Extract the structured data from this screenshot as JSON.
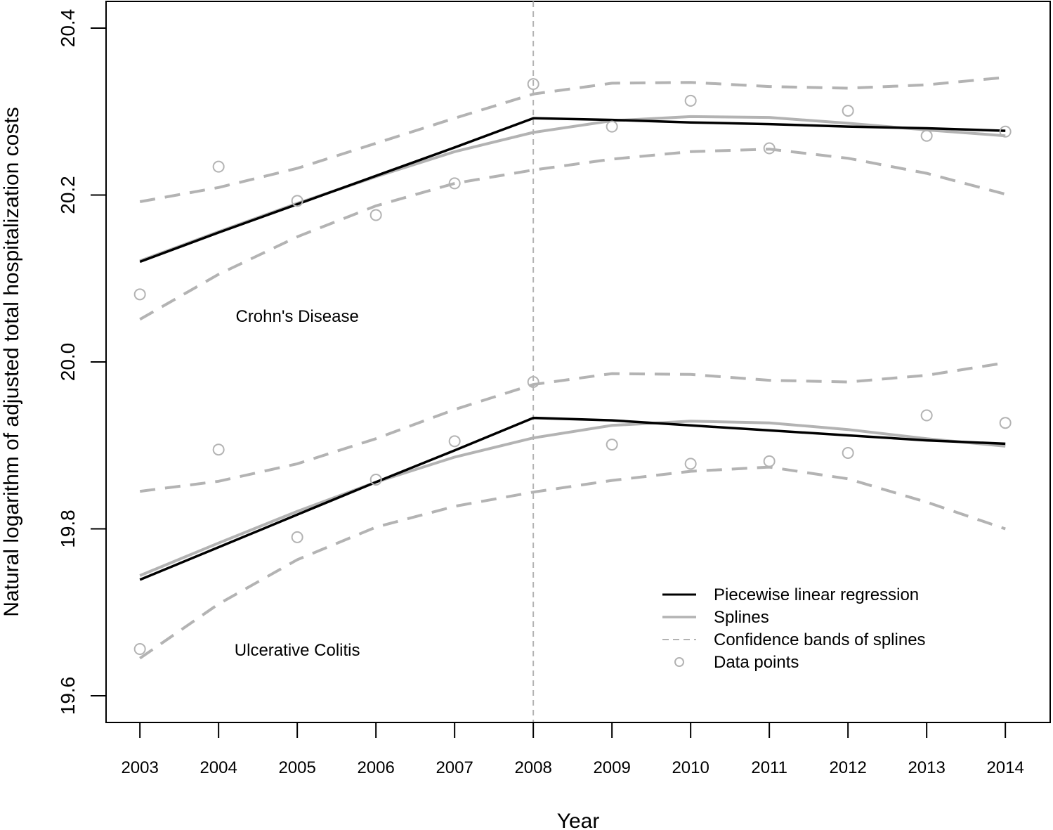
{
  "chart_data": {
    "type": "line",
    "title": "",
    "xlabel": "Year",
    "ylabel": "Natural logarithm of adjusted total hospitalization costs",
    "xlim": [
      2002.57,
      2014.57
    ],
    "ylim": [
      19.568,
      20.432
    ],
    "x_ticks": [
      2003,
      2004,
      2005,
      2006,
      2007,
      2008,
      2009,
      2010,
      2011,
      2012,
      2013,
      2014
    ],
    "y_ticks": [
      19.6,
      19.8,
      20.0,
      20.2,
      20.4
    ],
    "y_tick_labels": [
      "19.6",
      "19.8",
      "20.0",
      "20.2",
      "20.4"
    ],
    "grid": false,
    "legend_position": "bottom-right",
    "reference_line": {
      "x": 2008,
      "style": "dashed",
      "color": "#b3b3b3"
    },
    "legend": [
      {
        "label": "Piecewise linear regression",
        "kind": "line",
        "color": "#000000"
      },
      {
        "label": "Splines",
        "kind": "line",
        "color": "#b3b3b3"
      },
      {
        "label": "Confidence bands of splines",
        "kind": "dashed",
        "color": "#b3b3b3"
      },
      {
        "label": "Data points",
        "kind": "circle",
        "color": "#b3b3b3"
      }
    ],
    "groups": [
      {
        "label": "Crohn's Disease",
        "label_position": [
          2005.0,
          20.048
        ],
        "x": [
          2003,
          2004,
          2005,
          2006,
          2007,
          2008,
          2009,
          2010,
          2011,
          2012,
          2013,
          2014
        ],
        "data_points": [
          20.081,
          20.234,
          20.193,
          20.176,
          20.214,
          20.333,
          20.282,
          20.313,
          20.256,
          20.301,
          20.271,
          20.276
        ],
        "piecewise": [
          20.12,
          20.155,
          20.189,
          20.223,
          20.257,
          20.292,
          20.29,
          20.287,
          20.285,
          20.282,
          20.28,
          20.277
        ],
        "splines": [
          20.121,
          20.156,
          20.19,
          20.222,
          20.252,
          20.275,
          20.289,
          20.294,
          20.293,
          20.286,
          20.278,
          20.271
        ],
        "band_upper": [
          20.192,
          20.209,
          20.232,
          20.262,
          20.292,
          20.321,
          20.334,
          20.335,
          20.33,
          20.328,
          20.332,
          20.341
        ],
        "band_lower": [
          20.051,
          20.105,
          20.15,
          20.187,
          20.214,
          20.23,
          20.243,
          20.252,
          20.255,
          20.244,
          20.226,
          20.201
        ]
      },
      {
        "label": "Ulcerative Colitis",
        "label_position": [
          2005.0,
          19.648
        ],
        "x": [
          2003,
          2004,
          2005,
          2006,
          2007,
          2008,
          2009,
          2010,
          2011,
          2012,
          2013,
          2014
        ],
        "data_points": [
          19.656,
          19.895,
          19.79,
          19.859,
          19.905,
          19.976,
          19.901,
          19.878,
          19.881,
          19.891,
          19.936,
          19.927
        ],
        "piecewise": [
          19.739,
          19.778,
          19.817,
          19.856,
          19.894,
          19.933,
          19.93,
          19.924,
          19.918,
          19.912,
          19.906,
          19.902
        ],
        "splines": [
          19.744,
          19.783,
          19.821,
          19.856,
          19.886,
          19.909,
          19.924,
          19.929,
          19.927,
          19.919,
          19.908,
          19.899
        ],
        "band_upper": [
          19.845,
          19.857,
          19.878,
          19.908,
          19.943,
          19.973,
          19.986,
          19.985,
          19.978,
          19.976,
          19.984,
          19.999
        ],
        "band_lower": [
          19.645,
          19.71,
          19.763,
          19.802,
          19.827,
          19.844,
          19.858,
          19.869,
          19.874,
          19.86,
          19.832,
          19.8
        ]
      }
    ]
  }
}
